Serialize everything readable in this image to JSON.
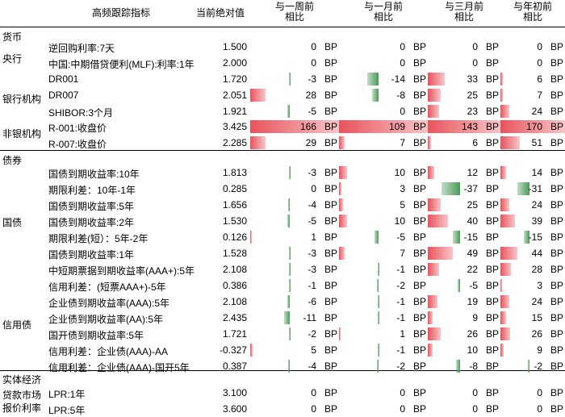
{
  "headers": {
    "indicator": "高频跟踪指标",
    "current": "当前绝对值",
    "w1": [
      "与一周前",
      "相比"
    ],
    "m1": [
      "与一月前",
      "相比"
    ],
    "m3": [
      "与三月前",
      "相比"
    ],
    "ytd": [
      "与年初前",
      "相比"
    ]
  },
  "unit": "BP",
  "colors": {
    "positive": "#e8535c",
    "negative": "#4a9a58"
  },
  "sections": {
    "currency": "货币",
    "bonds": "债券",
    "real": "实体经济"
  },
  "categories": {
    "central_bank": "央行",
    "banks": "银行机构",
    "nonbanks": "非银机构",
    "treasury": "国债",
    "credit": "信用债",
    "loan": [
      "贷款市场",
      "报价利率"
    ]
  },
  "rows": [
    {
      "label": "逆回购利率:7天",
      "value": "1.500",
      "w1": 0,
      "m1": 0,
      "m3": 0,
      "ytd": 0
    },
    {
      "label": "中国:中期借贷便利(MLF):利率:1年",
      "value": "2.000",
      "w1": 0,
      "m1": 0,
      "m3": 0,
      "ytd": 0
    },
    {
      "label": "DR001",
      "value": "1.720",
      "w1": -3,
      "m1": -14,
      "m3": 33,
      "ytd": 6
    },
    {
      "label": "DR007",
      "value": "2.051",
      "w1": 28,
      "m1": -8,
      "m3": 25,
      "ytd": 7
    },
    {
      "label": "SHIBOR:3个月",
      "value": "1.921",
      "w1": -5,
      "m1": 0,
      "m3": 23,
      "ytd": 24
    },
    {
      "label": "R-001:收盘价",
      "value": "3.425",
      "w1": 166,
      "m1": 109,
      "m3": 143,
      "ytd": 170
    },
    {
      "label": "R-007:收盘价",
      "value": "2.285",
      "w1": 29,
      "m1": 7,
      "m3": 6,
      "ytd": 51
    },
    {
      "label": "国债到期收益率:10年",
      "value": "1.813",
      "w1": -3,
      "m1": 10,
      "m3": 12,
      "ytd": 14
    },
    {
      "label": "期限利差：10年-1年",
      "value": "0.285",
      "w1": 0,
      "m1": 3,
      "m3": -37,
      "ytd": -31
    },
    {
      "label": "国债到期收益率:5年",
      "value": "1.656",
      "w1": -4,
      "m1": 5,
      "m3": 25,
      "ytd": 24
    },
    {
      "label": "国债到期收益率:2年",
      "value": "1.530",
      "w1": -5,
      "m1": 10,
      "m3": 40,
      "ytd": 39
    },
    {
      "label": "期限利差(短）：5年-2年",
      "value": "0.126",
      "w1": 1,
      "m1": -5,
      "m3": -15,
      "ytd": -15
    },
    {
      "label": "国债到期收益率:1年",
      "value": "1.528",
      "w1": -3,
      "m1": 7,
      "m3": 49,
      "ytd": 44
    },
    {
      "label": "中短期票据到期收益率(AAA+):5年",
      "value": "2.108",
      "w1": -3,
      "m1": -1,
      "m3": 22,
      "ytd": 28
    },
    {
      "label": "信用利差：(短票AAA+)-5年",
      "value": "0.386",
      "w1": -1,
      "m1": -2,
      "m3": -5,
      "ytd": 3
    },
    {
      "label": "企业债到期收益率(AAA):5年",
      "value": "2.108",
      "w1": -6,
      "m1": -1,
      "m3": 19,
      "ytd": 24
    },
    {
      "label": "企业债到期收益率(AA):5年",
      "value": "2.435",
      "w1": -11,
      "m1": -1,
      "m3": 9,
      "ytd": 15
    },
    {
      "label": "国开债到期收益率:5年",
      "value": "1.721",
      "w1": -2,
      "m1": 1,
      "m3": 26,
      "ytd": 26
    },
    {
      "label": "信用利差：企业债(AAA)-AA",
      "value": "-0.327",
      "w1": 5,
      "m1": -1,
      "m3": 10,
      "ytd": 9
    },
    {
      "label": "信用利差：企业债(AAA)-国开5年",
      "value": "0.387",
      "w1": -4,
      "m1": -2,
      "m3": -8,
      "ytd": -2
    },
    {
      "label": "LPR:1年",
      "value": "3.100",
      "w1": 0,
      "m1": 0,
      "m3": 0,
      "ytd": 0
    },
    {
      "label": "LPR:5年",
      "value": "3.600",
      "w1": 0,
      "m1": 0,
      "m3": 0,
      "ytd": 0
    }
  ]
}
